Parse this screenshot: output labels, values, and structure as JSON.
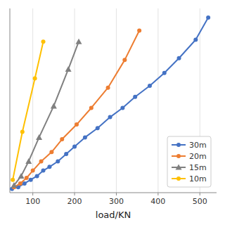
{
  "chart_data": {
    "type": "line",
    "xlabel": "load/KN",
    "xlim": [
      45,
      540
    ],
    "xticks": [
      100,
      200,
      300,
      400,
      500
    ],
    "ylim": [
      0,
      1
    ],
    "yticks": [],
    "grid": true,
    "tick_labels": "x",
    "legend": "lower right",
    "series": [
      {
        "name": "30m",
        "color": "#4472c4",
        "marker": "circle",
        "x": [
          50,
          65,
          80,
          95,
          110,
          125,
          140,
          160,
          180,
          200,
          225,
          255,
          285,
          315,
          345,
          380,
          415,
          450,
          490,
          520
        ],
        "values": [
          0.02,
          0.03,
          0.05,
          0.07,
          0.09,
          0.12,
          0.14,
          0.17,
          0.21,
          0.25,
          0.3,
          0.35,
          0.41,
          0.46,
          0.52,
          0.58,
          0.65,
          0.73,
          0.83,
          0.95
        ]
      },
      {
        "name": "20m",
        "color": "#ed7d31",
        "marker": "circle",
        "x": [
          55,
          70,
          85,
          100,
          120,
          145,
          170,
          205,
          240,
          280,
          320,
          355
        ],
        "values": [
          0.03,
          0.05,
          0.08,
          0.12,
          0.17,
          0.22,
          0.29,
          0.37,
          0.46,
          0.57,
          0.72,
          0.88
        ]
      },
      {
        "name": "15m",
        "color": "#808080",
        "marker": "triangle",
        "x": [
          55,
          72,
          90,
          115,
          150,
          185,
          210
        ],
        "values": [
          0.04,
          0.09,
          0.17,
          0.3,
          0.47,
          0.67,
          0.82
        ]
      },
      {
        "name": "10m",
        "color": "#ffc000",
        "marker": "circle",
        "x": [
          52,
          75,
          105,
          125
        ],
        "values": [
          0.07,
          0.33,
          0.62,
          0.82
        ]
      }
    ]
  }
}
